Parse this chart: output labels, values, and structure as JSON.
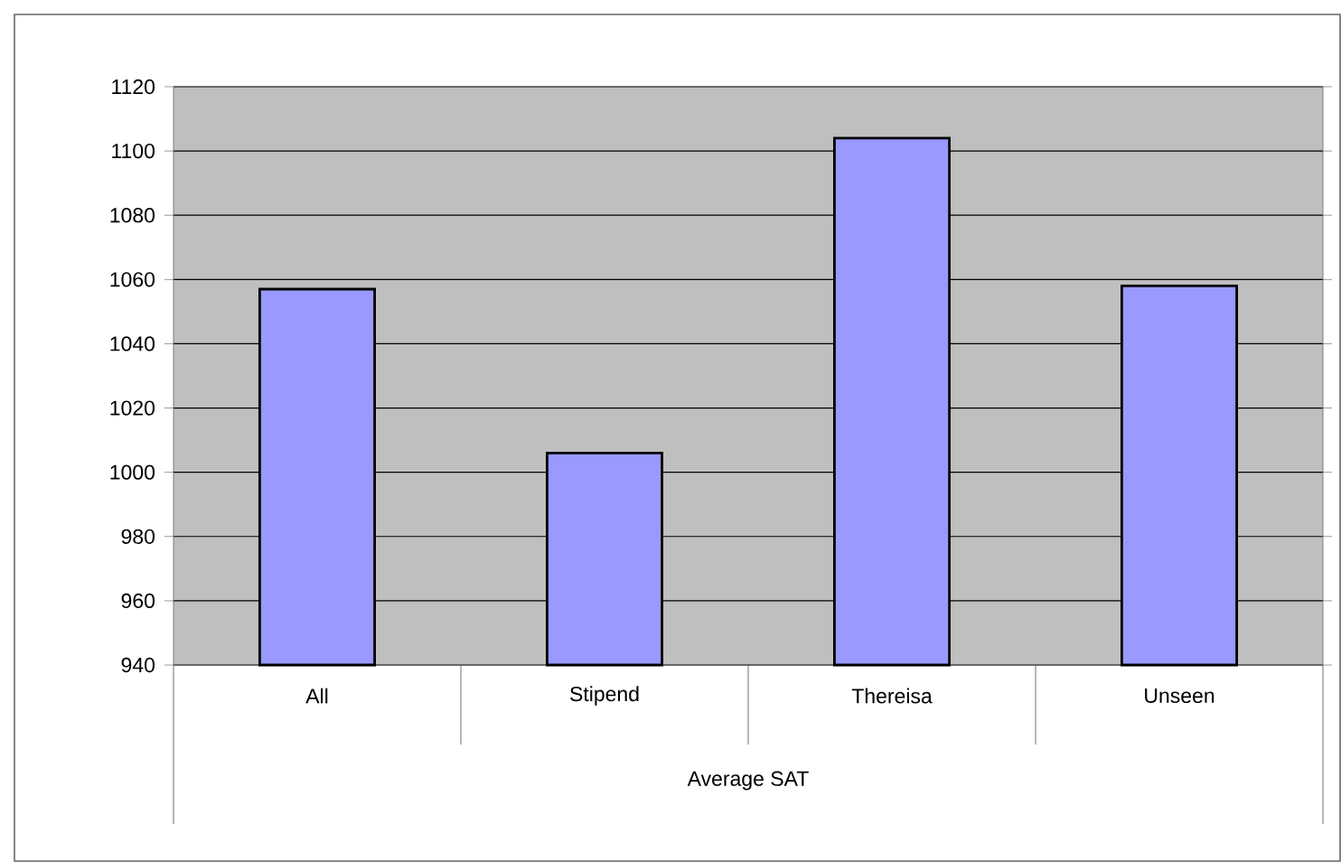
{
  "chart_data": {
    "type": "bar",
    "xlabel": "Average SAT",
    "categories": [
      "All",
      "Stipend",
      "Thereisa",
      "Unseen"
    ],
    "values": [
      1057,
      1006,
      1104,
      1058
    ],
    "color": "#9999ff",
    "ylim": [
      940,
      1120
    ],
    "yticks": [
      940,
      960,
      980,
      1000,
      1020,
      1040,
      1060,
      1080,
      1100,
      1120
    ],
    "grid": "y"
  }
}
